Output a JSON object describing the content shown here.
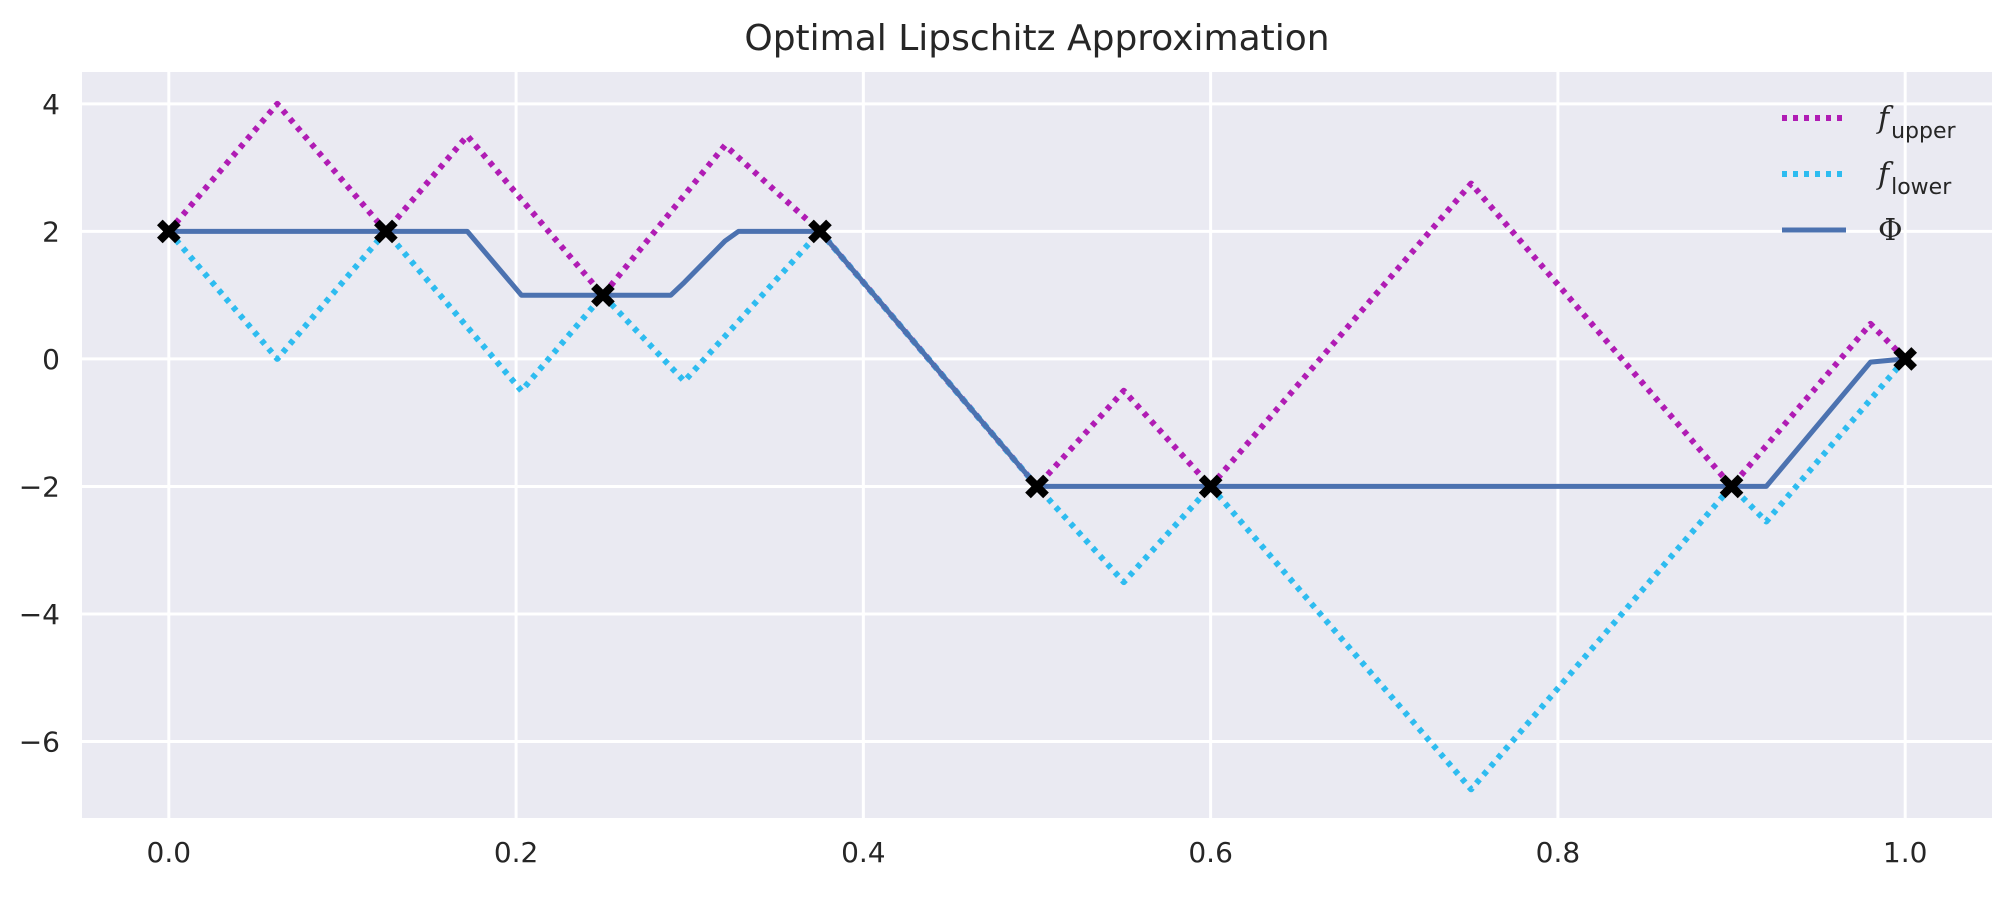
{
  "chart_data": {
    "type": "line",
    "title": "Optimal Lipschitz Approximation",
    "xlabel": "",
    "ylabel": "",
    "xlim": [
      -0.05,
      1.05
    ],
    "ylim": [
      -7.2,
      4.5
    ],
    "x_ticks": [
      0.0,
      0.2,
      0.4,
      0.6,
      0.8,
      1.0
    ],
    "x_tick_labels": [
      "0.0",
      "0.2",
      "0.4",
      "0.6",
      "0.8",
      "1.0"
    ],
    "y_ticks": [
      -6,
      -4,
      -2,
      0,
      2,
      4
    ],
    "y_tick_labels": [
      "−6",
      "−4",
      "−2",
      "0",
      "2",
      "4"
    ],
    "grid": true,
    "legend_position": "top-right",
    "colors": {
      "background": "#eaeaf2",
      "grid": "#ffffff",
      "upper": "#b01cb4",
      "lower": "#2ebcf0",
      "phi": "#4c72b0",
      "markers": "#000000"
    },
    "series": [
      {
        "key": "upper",
        "name": "f",
        "name_subscript": "upper",
        "style": "dotted",
        "x": [
          0.0,
          0.0625,
          0.125,
          0.1719,
          0.25,
          0.3203,
          0.375,
          0.5,
          0.55,
          0.6,
          0.75,
          0.9,
          0.98,
          1.0
        ],
        "y": [
          2.0,
          4.0,
          2.0,
          3.5,
          1.0,
          3.35,
          2.0,
          -2.0,
          -0.5,
          -2.0,
          2.75,
          -2.0,
          0.55,
          0.0
        ]
      },
      {
        "key": "lower",
        "name": "f",
        "name_subscript": "lower",
        "style": "dotted",
        "x": [
          0.0,
          0.0625,
          0.125,
          0.2031,
          0.25,
          0.2969,
          0.375,
          0.5,
          0.55,
          0.6,
          0.75,
          0.9,
          0.92,
          1.0
        ],
        "y": [
          2.0,
          0.0,
          2.0,
          -0.5,
          1.0,
          -0.35,
          2.0,
          -2.0,
          -3.5,
          -2.0,
          -6.75,
          -2.0,
          -2.55,
          0.0
        ]
      },
      {
        "key": "phi",
        "name": "Φ",
        "style": "solid",
        "x": [
          0.0,
          0.125,
          0.1719,
          0.2031,
          0.2109,
          0.25,
          0.2891,
          0.2969,
          0.3203,
          0.3281,
          0.375,
          0.5,
          0.9,
          0.92,
          0.98,
          1.0
        ],
        "y": [
          2.0,
          2.0,
          2.0,
          1.0,
          1.0,
          1.0,
          1.0,
          1.2,
          1.85,
          2.0,
          2.0,
          -2.0,
          -2.0,
          -2.0,
          -0.05,
          0.0
        ]
      }
    ],
    "data_points": {
      "x": [
        0.0,
        0.125,
        0.25,
        0.375,
        0.5,
        0.6,
        0.9,
        1.0
      ],
      "y": [
        2.0,
        2.0,
        1.0,
        2.0,
        -2.0,
        -2.0,
        -2.0,
        0.0
      ],
      "marker": "X"
    }
  }
}
